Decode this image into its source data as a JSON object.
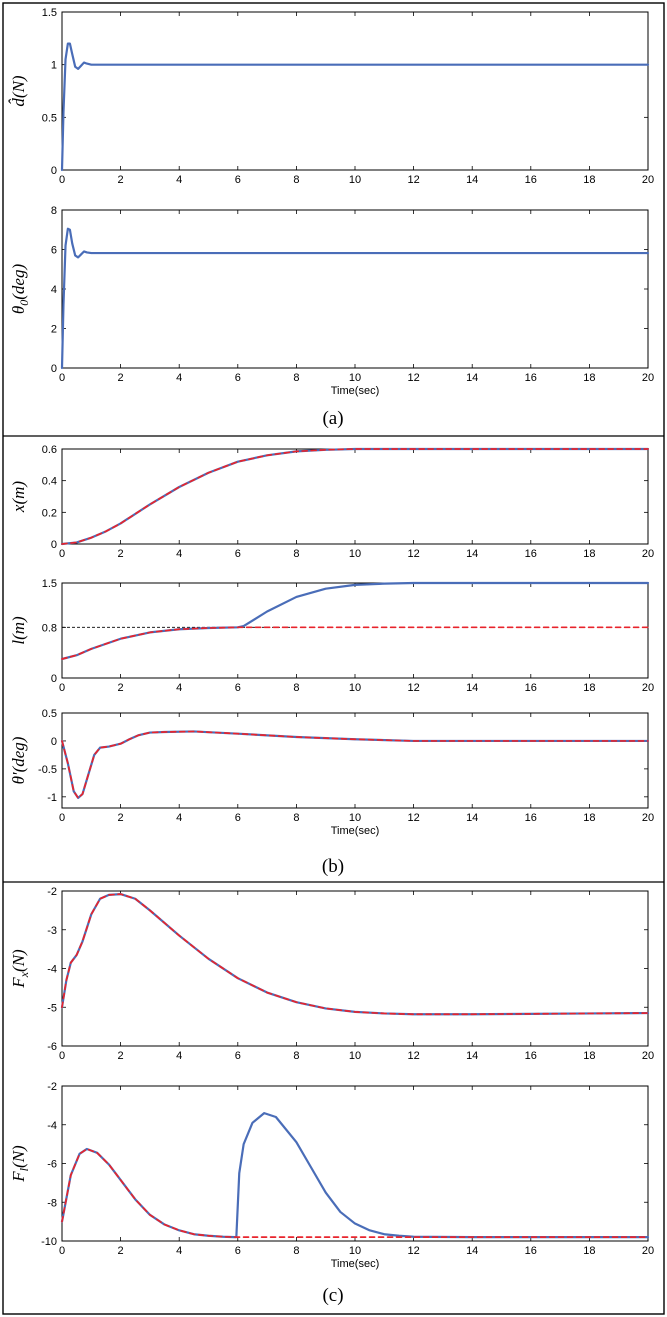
{
  "colors": {
    "actual": "#4a6db8",
    "desired": "#e8242c",
    "reference": "#000000"
  },
  "panel_labels": [
    "(a)",
    "(b)",
    "(c)"
  ],
  "chart_data": [
    {
      "id": "d_hat",
      "type": "line",
      "ylabel": "d̂(N)",
      "xlabel": "",
      "xlim": [
        0,
        20
      ],
      "ylim": [
        0,
        1.5
      ],
      "xticks": [
        0,
        2,
        4,
        6,
        8,
        10,
        12,
        14,
        16,
        18,
        20
      ],
      "yticks": [
        0,
        0.5,
        1,
        1.5
      ],
      "series": [
        {
          "style": "solid",
          "color": "actual",
          "x": [
            0,
            0.05,
            0.12,
            0.2,
            0.27,
            0.35,
            0.45,
            0.55,
            0.65,
            0.75,
            0.85,
            1.0,
            1.3,
            20
          ],
          "y": [
            0,
            0.55,
            1.05,
            1.2,
            1.2,
            1.1,
            0.98,
            0.96,
            0.99,
            1.02,
            1.01,
            1.0,
            1.0,
            1.0
          ]
        }
      ],
      "ref_lines": []
    },
    {
      "id": "theta0",
      "type": "line",
      "ylabel": "θ0(deg)",
      "xlabel": "Time(sec)",
      "xlim": [
        0,
        20
      ],
      "ylim": [
        0,
        8
      ],
      "xticks": [
        0,
        2,
        4,
        6,
        8,
        10,
        12,
        14,
        16,
        18,
        20
      ],
      "yticks": [
        0,
        2,
        4,
        6,
        8
      ],
      "series": [
        {
          "style": "solid",
          "color": "actual",
          "x": [
            0,
            0.05,
            0.12,
            0.2,
            0.27,
            0.35,
            0.45,
            0.55,
            0.65,
            0.75,
            0.85,
            1.0,
            1.3,
            20
          ],
          "y": [
            0,
            3.2,
            6.2,
            7.05,
            7.0,
            6.3,
            5.7,
            5.6,
            5.75,
            5.9,
            5.85,
            5.82,
            5.82,
            5.82
          ]
        }
      ],
      "ref_lines": []
    },
    {
      "id": "x",
      "type": "line",
      "ylabel": "x(m)",
      "xlabel": "",
      "xlim": [
        0,
        20
      ],
      "ylim": [
        0,
        0.6
      ],
      "xticks": [
        0,
        2,
        4,
        6,
        8,
        10,
        12,
        14,
        16,
        18,
        20
      ],
      "yticks": [
        0,
        0.2,
        0.4,
        0.6
      ],
      "series": [
        {
          "style": "solid",
          "color": "actual",
          "x": [
            0,
            0.5,
            1,
            1.5,
            2,
            3,
            4,
            5,
            6,
            7,
            8,
            9,
            10,
            11,
            12,
            20
          ],
          "y": [
            0,
            0.01,
            0.04,
            0.08,
            0.13,
            0.25,
            0.36,
            0.45,
            0.52,
            0.56,
            0.585,
            0.595,
            0.6,
            0.6,
            0.6,
            0.6
          ]
        },
        {
          "style": "dashed",
          "color": "desired",
          "x": [
            0,
            0.5,
            1,
            1.5,
            2,
            3,
            4,
            5,
            6,
            7,
            8,
            9,
            10,
            11,
            12,
            20
          ],
          "y": [
            0,
            0.01,
            0.04,
            0.08,
            0.13,
            0.25,
            0.36,
            0.45,
            0.52,
            0.56,
            0.585,
            0.595,
            0.6,
            0.6,
            0.6,
            0.6
          ]
        }
      ],
      "ref_lines": [
        {
          "y": 0.6,
          "x_end": 10
        }
      ]
    },
    {
      "id": "l",
      "type": "line",
      "ylabel": "l(m)",
      "xlabel": "",
      "xlim": [
        0,
        20
      ],
      "ylim": [
        0,
        1.5
      ],
      "xticks": [
        0,
        2,
        4,
        6,
        8,
        10,
        12,
        14,
        16,
        18,
        20
      ],
      "yticks": [
        0,
        0.8,
        1.5
      ],
      "series": [
        {
          "style": "solid",
          "color": "actual",
          "x": [
            0,
            0.5,
            1,
            2,
            3,
            4,
            5,
            6,
            6.2,
            7,
            8,
            9,
            10,
            11,
            12,
            20
          ],
          "y": [
            0.3,
            0.36,
            0.46,
            0.62,
            0.72,
            0.77,
            0.79,
            0.8,
            0.82,
            1.05,
            1.28,
            1.41,
            1.47,
            1.49,
            1.5,
            1.5
          ]
        },
        {
          "style": "dashed",
          "color": "desired",
          "x": [
            0,
            0.5,
            1,
            2,
            3,
            4,
            5,
            6,
            7,
            8,
            20
          ],
          "y": [
            0.3,
            0.36,
            0.46,
            0.62,
            0.72,
            0.77,
            0.79,
            0.8,
            0.8,
            0.8,
            0.8
          ]
        }
      ],
      "ref_lines": [
        {
          "y": 1.5,
          "x_end": 12
        },
        {
          "y": 0.8,
          "x_end": 8
        }
      ]
    },
    {
      "id": "theta_prime",
      "type": "line",
      "ylabel": "θ'(deg)",
      "xlabel": "Time(sec)",
      "xlim": [
        0,
        20
      ],
      "ylim": [
        -1.2,
        0.5
      ],
      "xticks": [
        0,
        2,
        4,
        6,
        8,
        10,
        12,
        14,
        16,
        18,
        20
      ],
      "yticks": [
        -1,
        -0.5,
        0,
        0.5
      ],
      "series": [
        {
          "style": "solid",
          "color": "actual",
          "x": [
            0,
            0.2,
            0.4,
            0.55,
            0.7,
            0.9,
            1.1,
            1.3,
            1.6,
            2.0,
            2.3,
            2.6,
            3.0,
            3.5,
            4.5,
            6,
            8,
            10,
            12,
            20
          ],
          "y": [
            0,
            -0.4,
            -0.9,
            -1.02,
            -0.95,
            -0.6,
            -0.25,
            -0.12,
            -0.1,
            -0.05,
            0.03,
            0.1,
            0.15,
            0.16,
            0.17,
            0.13,
            0.07,
            0.03,
            0.0,
            0.0
          ]
        },
        {
          "style": "dashed",
          "color": "desired",
          "x": [
            0,
            0.2,
            0.4,
            0.55,
            0.7,
            0.9,
            1.1,
            1.3,
            1.6,
            2.0,
            2.3,
            2.6,
            3.0,
            3.5,
            4.5,
            6,
            8,
            10,
            12,
            20
          ],
          "y": [
            0,
            -0.4,
            -0.9,
            -1.02,
            -0.95,
            -0.6,
            -0.25,
            -0.12,
            -0.1,
            -0.05,
            0.03,
            0.1,
            0.15,
            0.16,
            0.17,
            0.13,
            0.07,
            0.03,
            0.0,
            0.0
          ]
        }
      ],
      "ref_lines": []
    },
    {
      "id": "Fx",
      "type": "line",
      "ylabel": "Fx(N)",
      "xlabel": "",
      "xlim": [
        0,
        20
      ],
      "ylim": [
        -6,
        -2
      ],
      "xticks": [
        0,
        2,
        4,
        6,
        8,
        10,
        12,
        14,
        16,
        18,
        20
      ],
      "yticks": [
        -6,
        -5,
        -4,
        -3,
        -2
      ],
      "series": [
        {
          "style": "solid",
          "color": "actual",
          "x": [
            0,
            0.15,
            0.3,
            0.5,
            0.7,
            1.0,
            1.3,
            1.6,
            2.0,
            2.5,
            3,
            4,
            5,
            6,
            7,
            8,
            9,
            10,
            11,
            12,
            14,
            16,
            18,
            20
          ],
          "y": [
            -5.0,
            -4.3,
            -3.85,
            -3.65,
            -3.3,
            -2.6,
            -2.2,
            -2.1,
            -2.08,
            -2.2,
            -2.5,
            -3.15,
            -3.75,
            -4.25,
            -4.62,
            -4.87,
            -5.03,
            -5.12,
            -5.16,
            -5.18,
            -5.18,
            -5.17,
            -5.16,
            -5.15
          ]
        },
        {
          "style": "dashed",
          "color": "desired",
          "x": [
            0,
            0.15,
            0.3,
            0.5,
            0.7,
            1.0,
            1.3,
            1.6,
            2.0,
            2.5,
            3,
            4,
            5,
            6,
            7,
            8,
            9,
            10,
            11,
            12,
            14,
            16,
            18,
            20
          ],
          "y": [
            -5.0,
            -4.3,
            -3.85,
            -3.65,
            -3.3,
            -2.6,
            -2.2,
            -2.1,
            -2.08,
            -2.2,
            -2.5,
            -3.15,
            -3.75,
            -4.25,
            -4.62,
            -4.87,
            -5.03,
            -5.12,
            -5.16,
            -5.18,
            -5.18,
            -5.17,
            -5.16,
            -5.15
          ]
        }
      ],
      "ref_lines": []
    },
    {
      "id": "Fl",
      "type": "line",
      "ylabel": "Fl(N)",
      "xlabel": "Time(sec)",
      "xlim": [
        0,
        20
      ],
      "ylim": [
        -10,
        -2
      ],
      "xticks": [
        0,
        2,
        4,
        6,
        8,
        10,
        12,
        14,
        16,
        18,
        20
      ],
      "yticks": [
        -10,
        -8,
        -6,
        -4,
        -2
      ],
      "series": [
        {
          "style": "solid",
          "color": "actual",
          "x": [
            0,
            0.3,
            0.6,
            0.85,
            1.2,
            1.6,
            2,
            2.5,
            3,
            3.5,
            4,
            4.5,
            5,
            5.5,
            5.9,
            5.95,
            6.05,
            6.2,
            6.5,
            6.9,
            7.3,
            8,
            8.5,
            9,
            9.5,
            10,
            10.5,
            11,
            11.5,
            12,
            14,
            20
          ],
          "y": [
            -9.0,
            -6.6,
            -5.5,
            -5.25,
            -5.45,
            -6.05,
            -6.85,
            -7.85,
            -8.65,
            -9.15,
            -9.45,
            -9.65,
            -9.73,
            -9.78,
            -9.8,
            -9.8,
            -6.5,
            -5.0,
            -3.9,
            -3.4,
            -3.6,
            -4.9,
            -6.2,
            -7.5,
            -8.5,
            -9.1,
            -9.45,
            -9.65,
            -9.73,
            -9.78,
            -9.8,
            -9.8
          ]
        },
        {
          "style": "dashed",
          "color": "desired",
          "x": [
            0,
            0.3,
            0.6,
            0.85,
            1.2,
            1.6,
            2,
            2.5,
            3,
            3.5,
            4,
            4.5,
            5,
            5.5,
            6,
            8,
            10,
            12,
            14,
            20
          ],
          "y": [
            -9.0,
            -6.6,
            -5.5,
            -5.25,
            -5.45,
            -6.05,
            -6.85,
            -7.85,
            -8.65,
            -9.15,
            -9.45,
            -9.65,
            -9.73,
            -9.78,
            -9.8,
            -9.8,
            -9.8,
            -9.8,
            -9.8,
            -9.8
          ]
        }
      ],
      "ref_lines": []
    }
  ]
}
